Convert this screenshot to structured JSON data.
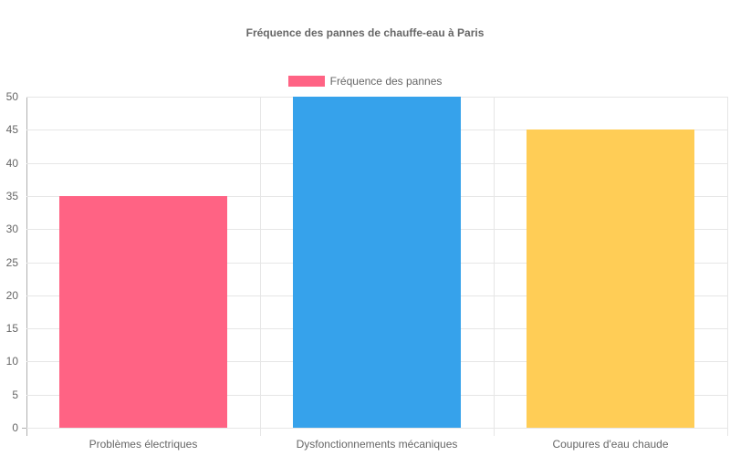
{
  "chart_data": {
    "type": "bar",
    "title": "Fréquence des pannes de chauffe-eau à Paris",
    "categories": [
      "Problèmes électriques",
      "Dysfonctionnements mécaniques",
      "Coupures d'eau chaude"
    ],
    "series": [
      {
        "name": "Fréquence des pannes",
        "values": [
          35,
          50,
          45
        ],
        "colors": [
          "#ff6384",
          "#36a2eb",
          "#ffcd56"
        ]
      }
    ],
    "xlabel": "",
    "ylabel": "",
    "ylim": [
      0,
      50
    ],
    "yticks": [
      "50",
      "45",
      "40",
      "35",
      "30",
      "25",
      "20",
      "15",
      "10",
      "5",
      "0"
    ],
    "grid": true,
    "legend_position": "top"
  },
  "legend": {
    "label": "Fréquence des pannes",
    "color": "#ff6384"
  }
}
